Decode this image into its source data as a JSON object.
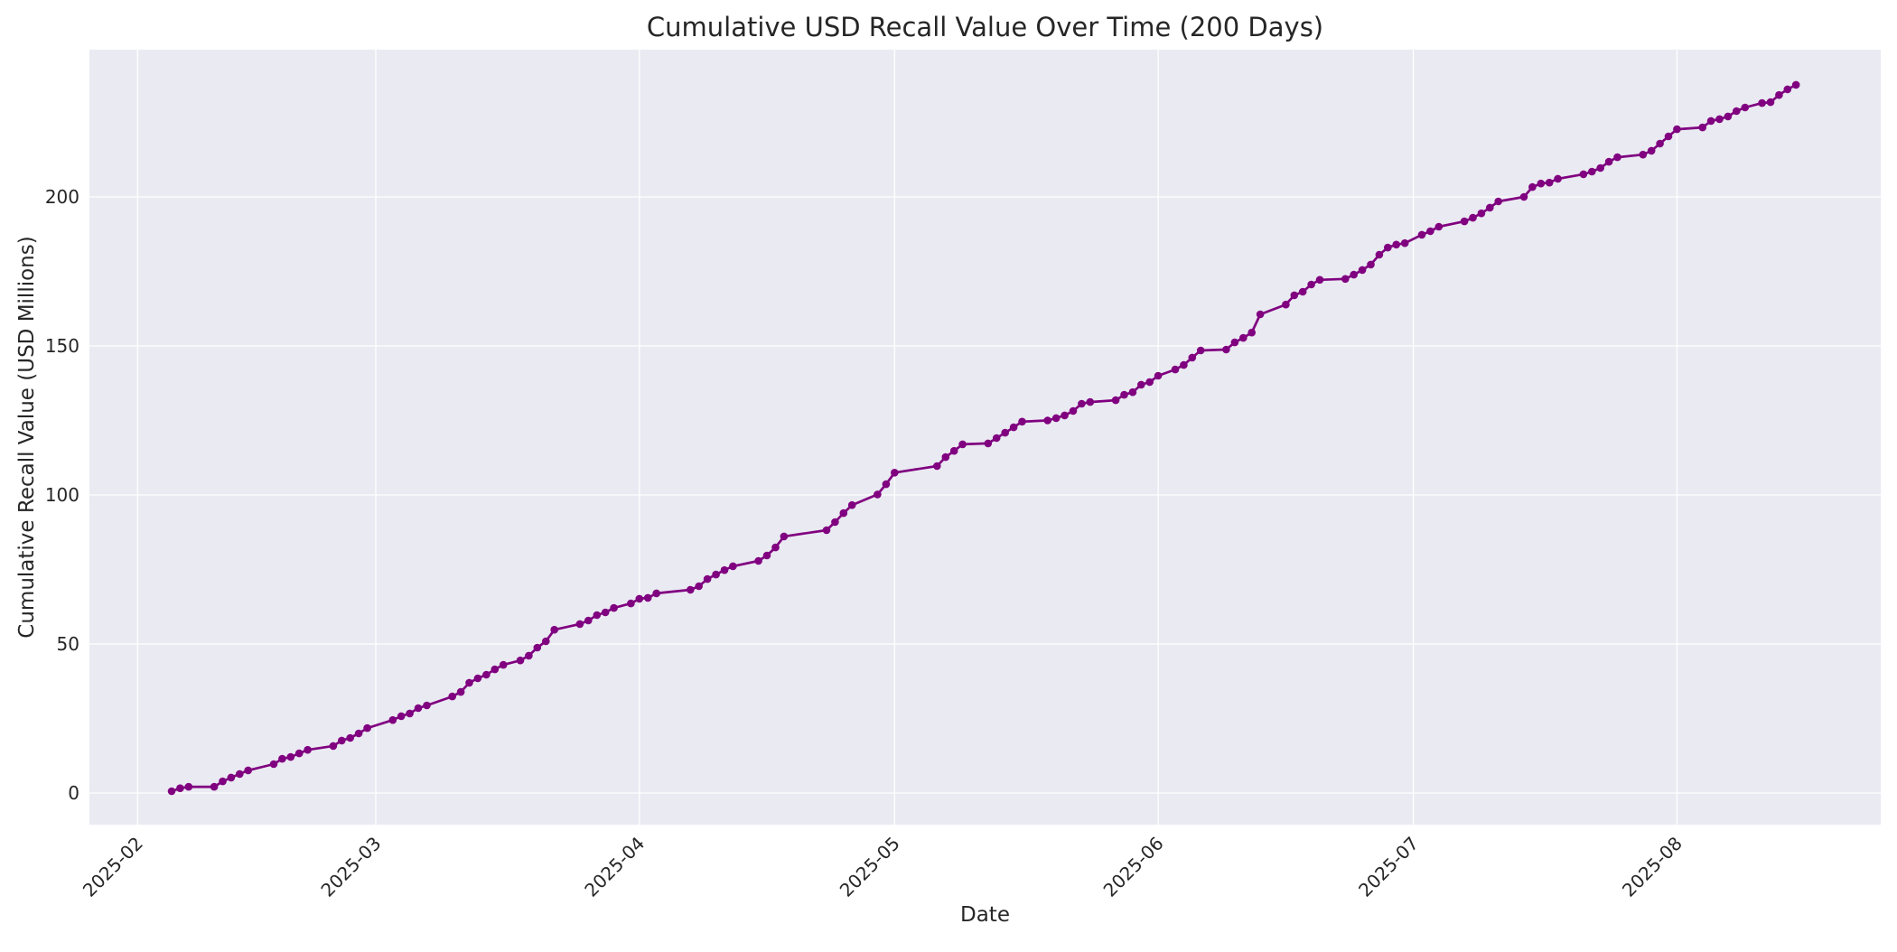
{
  "page": {
    "title": "Cumulative USD Recall Value Over Time (200 Days)"
  },
  "chart_data": {
    "type": "line",
    "title": "Cumulative USD Recall Value Over Time (200 Days)",
    "xlabel": "Date",
    "ylabel": "Cumulative Recall Value (USD Millions)",
    "legend": false,
    "grid": true,
    "marker": "o",
    "line_color": "#800080",
    "plot_background": "#eaeaf2",
    "grid_color": "#ffffff",
    "text_color": "#262626",
    "xlim": [
      "2025-01-26T08:00:00Z",
      "2025-08-24T23:00:00Z"
    ],
    "ylim": [
      -10.6,
      249.4
    ],
    "y_ticks": [
      0,
      50,
      100,
      150,
      200
    ],
    "x_ticks": [
      {
        "date": "2025-02-01",
        "label": "2025-02"
      },
      {
        "date": "2025-03-01",
        "label": "2025-03"
      },
      {
        "date": "2025-04-01",
        "label": "2025-04"
      },
      {
        "date": "2025-05-01",
        "label": "2025-05"
      },
      {
        "date": "2025-06-01",
        "label": "2025-06"
      },
      {
        "date": "2025-07-01",
        "label": "2025-07"
      },
      {
        "date": "2025-08-01",
        "label": "2025-08"
      }
    ],
    "series": [
      {
        "name": "Cumulative USD recall value",
        "points": [
          [
            "2025-02-05",
            0.6
          ],
          [
            "2025-02-06",
            1.6
          ],
          [
            "2025-02-07",
            2.1
          ],
          [
            "2025-02-10",
            2.1
          ],
          [
            "2025-02-11",
            3.9
          ],
          [
            "2025-02-12",
            5.2
          ],
          [
            "2025-02-13",
            6.4
          ],
          [
            "2025-02-14",
            7.6
          ],
          [
            "2025-02-17",
            9.7
          ],
          [
            "2025-02-18",
            11.5
          ],
          [
            "2025-02-19",
            12.1
          ],
          [
            "2025-02-20",
            13.3
          ],
          [
            "2025-02-21",
            14.5
          ],
          [
            "2025-02-24",
            15.8
          ],
          [
            "2025-02-25",
            17.6
          ],
          [
            "2025-02-26",
            18.5
          ],
          [
            "2025-02-27",
            20.0
          ],
          [
            "2025-02-28",
            21.8
          ],
          [
            "2025-03-03",
            24.5
          ],
          [
            "2025-03-04",
            25.8
          ],
          [
            "2025-03-05",
            26.7
          ],
          [
            "2025-03-06",
            28.5
          ],
          [
            "2025-03-07",
            29.4
          ],
          [
            "2025-03-10",
            32.4
          ],
          [
            "2025-03-11",
            33.9
          ],
          [
            "2025-03-12",
            37.0
          ],
          [
            "2025-03-13",
            38.5
          ],
          [
            "2025-03-14",
            39.7
          ],
          [
            "2025-03-15",
            41.5
          ],
          [
            "2025-03-16",
            43.0
          ],
          [
            "2025-03-18",
            44.5
          ],
          [
            "2025-03-19",
            46.1
          ],
          [
            "2025-03-20",
            48.8
          ],
          [
            "2025-03-21",
            50.9
          ],
          [
            "2025-03-22",
            54.8
          ],
          [
            "2025-03-25",
            56.7
          ],
          [
            "2025-03-26",
            57.9
          ],
          [
            "2025-03-27",
            59.7
          ],
          [
            "2025-03-28",
            60.6
          ],
          [
            "2025-03-29",
            62.1
          ],
          [
            "2025-03-31",
            63.6
          ],
          [
            "2025-04-01",
            65.2
          ],
          [
            "2025-04-02",
            65.5
          ],
          [
            "2025-04-03",
            67.0
          ],
          [
            "2025-04-07",
            68.2
          ],
          [
            "2025-04-08",
            69.4
          ],
          [
            "2025-04-09",
            71.8
          ],
          [
            "2025-04-10",
            73.3
          ],
          [
            "2025-04-11",
            74.8
          ],
          [
            "2025-04-12",
            76.1
          ],
          [
            "2025-04-15",
            77.9
          ],
          [
            "2025-04-16",
            79.7
          ],
          [
            "2025-04-17",
            82.4
          ],
          [
            "2025-04-18",
            86.1
          ],
          [
            "2025-04-23",
            88.2
          ],
          [
            "2025-04-24",
            90.9
          ],
          [
            "2025-04-25",
            93.9
          ],
          [
            "2025-04-26",
            96.6
          ],
          [
            "2025-04-29",
            100.2
          ],
          [
            "2025-04-30",
            103.6
          ],
          [
            "2025-05-01",
            107.5
          ],
          [
            "2025-05-06",
            109.7
          ],
          [
            "2025-05-07",
            112.7
          ],
          [
            "2025-05-08",
            114.8
          ],
          [
            "2025-05-09",
            117.0
          ],
          [
            "2025-05-12",
            117.3
          ],
          [
            "2025-05-13",
            119.1
          ],
          [
            "2025-05-14",
            120.9
          ],
          [
            "2025-05-15",
            122.7
          ],
          [
            "2025-05-16",
            124.6
          ],
          [
            "2025-05-19",
            125.0
          ],
          [
            "2025-05-20",
            125.8
          ],
          [
            "2025-05-21",
            126.7
          ],
          [
            "2025-05-22",
            128.2
          ],
          [
            "2025-05-23",
            130.6
          ],
          [
            "2025-05-24",
            131.2
          ],
          [
            "2025-05-27",
            131.8
          ],
          [
            "2025-05-28",
            133.6
          ],
          [
            "2025-05-29",
            134.5
          ],
          [
            "2025-05-30",
            137.0
          ],
          [
            "2025-05-31",
            137.9
          ],
          [
            "2025-06-01",
            140.0
          ],
          [
            "2025-06-03",
            142.1
          ],
          [
            "2025-06-04",
            143.6
          ],
          [
            "2025-06-05",
            146.1
          ],
          [
            "2025-06-06",
            148.5
          ],
          [
            "2025-06-09",
            148.8
          ],
          [
            "2025-06-10",
            151.2
          ],
          [
            "2025-06-11",
            152.7
          ],
          [
            "2025-06-12",
            154.5
          ],
          [
            "2025-06-13",
            160.6
          ],
          [
            "2025-06-16",
            163.9
          ],
          [
            "2025-06-17",
            167.0
          ],
          [
            "2025-06-18",
            168.2
          ],
          [
            "2025-06-19",
            170.6
          ],
          [
            "2025-06-20",
            172.2
          ],
          [
            "2025-06-23",
            172.5
          ],
          [
            "2025-06-24",
            173.9
          ],
          [
            "2025-06-25",
            175.5
          ],
          [
            "2025-06-26",
            177.3
          ],
          [
            "2025-06-27",
            180.6
          ],
          [
            "2025-06-28",
            183.0
          ],
          [
            "2025-06-29",
            184.0
          ],
          [
            "2025-06-30",
            184.5
          ],
          [
            "2025-07-02",
            187.3
          ],
          [
            "2025-07-03",
            188.5
          ],
          [
            "2025-07-04",
            190.0
          ],
          [
            "2025-07-07",
            191.8
          ],
          [
            "2025-07-08",
            193.0
          ],
          [
            "2025-07-09",
            194.5
          ],
          [
            "2025-07-10",
            196.4
          ],
          [
            "2025-07-11",
            198.5
          ],
          [
            "2025-07-14",
            200.0
          ],
          [
            "2025-07-15",
            203.3
          ],
          [
            "2025-07-16",
            204.5
          ],
          [
            "2025-07-17",
            204.8
          ],
          [
            "2025-07-18",
            206.1
          ],
          [
            "2025-07-21",
            207.6
          ],
          [
            "2025-07-22",
            208.5
          ],
          [
            "2025-07-23",
            209.7
          ],
          [
            "2025-07-24",
            211.8
          ],
          [
            "2025-07-25",
            213.3
          ],
          [
            "2025-07-28",
            214.2
          ],
          [
            "2025-07-29",
            215.5
          ],
          [
            "2025-07-30",
            217.9
          ],
          [
            "2025-07-31",
            220.3
          ],
          [
            "2025-08-01",
            222.7
          ],
          [
            "2025-08-04",
            223.3
          ],
          [
            "2025-08-05",
            225.5
          ],
          [
            "2025-08-06",
            226.1
          ],
          [
            "2025-08-07",
            227.0
          ],
          [
            "2025-08-08",
            228.8
          ],
          [
            "2025-08-09",
            230.0
          ],
          [
            "2025-08-11",
            231.5
          ],
          [
            "2025-08-12",
            231.8
          ],
          [
            "2025-08-13",
            234.2
          ],
          [
            "2025-08-14",
            236.1
          ],
          [
            "2025-08-15",
            237.6
          ]
        ]
      }
    ]
  }
}
